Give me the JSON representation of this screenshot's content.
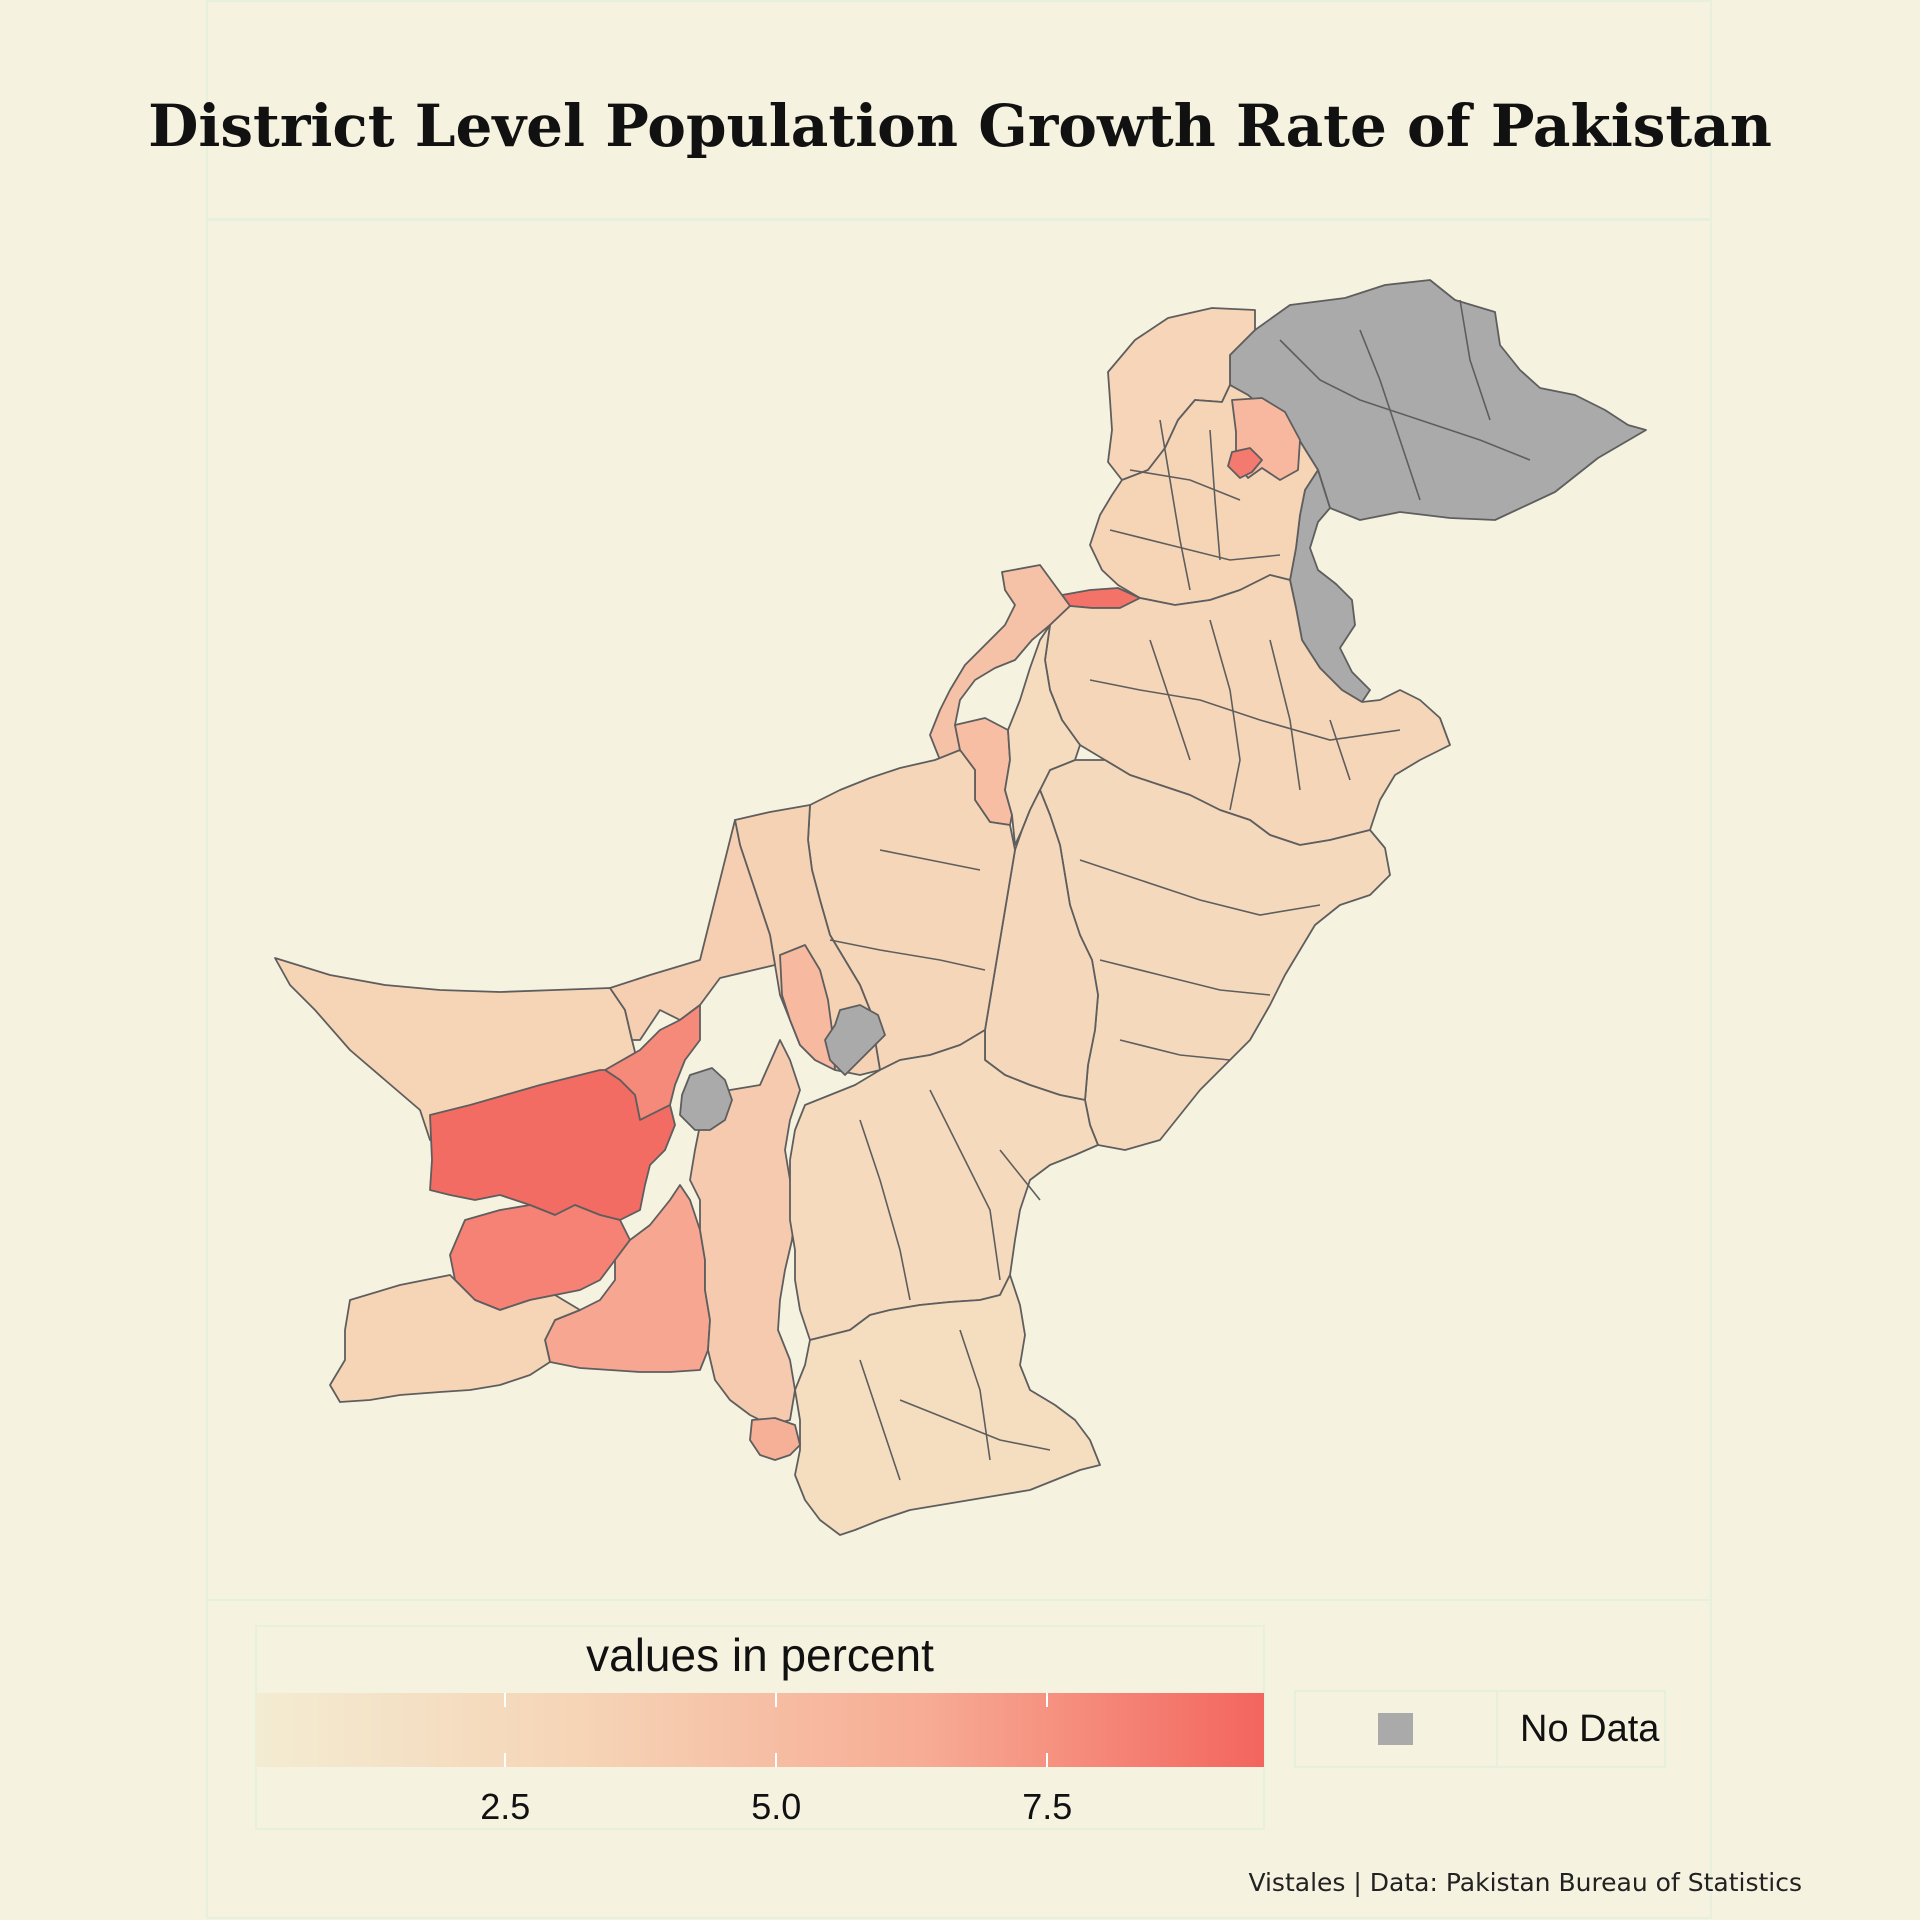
{
  "title": "District Level Population Growth Rate of Pakistan",
  "caption": "Vistales | Data: Pakistan Bureau of Statistics",
  "legend": {
    "title": "values in percent",
    "ticks": [
      {
        "label": "2.5",
        "value": 2.5
      },
      {
        "label": "5.0",
        "value": 5.0
      },
      {
        "label": "7.5",
        "value": 7.5
      }
    ],
    "range": [
      0.2,
      9.5
    ],
    "colors": [
      "#f3ecd2",
      "#f6d3b5",
      "#f7ab94",
      "#f3655e"
    ],
    "no_data_label": "No Data",
    "no_data_color": "#aaaaaa"
  },
  "colors": {
    "background": "#f5f2e0",
    "border": "#5e5e5e",
    "panel_line": "#e7f0dc"
  },
  "regions": [
    {
      "name": "northern-areas",
      "value": null
    },
    {
      "name": "kashmir-strip",
      "value": null
    },
    {
      "name": "chitral",
      "value": 3.0
    },
    {
      "name": "upper-kp-hills",
      "value": 3.1
    },
    {
      "name": "north-highlight-district",
      "value": 5.4
    },
    {
      "name": "north-small-district",
      "value": 8.6
    },
    {
      "name": "khyber-agency-strip",
      "value": 8.9
    },
    {
      "name": "tribal-belt-west",
      "value": 4.6
    },
    {
      "name": "tribal-belt-south",
      "value": 4.9
    },
    {
      "name": "punjab-north",
      "value": 2.9
    },
    {
      "name": "punjab-central",
      "value": 2.6
    },
    {
      "name": "punjab-west",
      "value": 2.2
    },
    {
      "name": "punjab-south",
      "value": 2.7
    },
    {
      "name": "balochistan-northeast",
      "value": 2.9
    },
    {
      "name": "balochistan-north-center",
      "value": 3.4
    },
    {
      "name": "balochistan-orange-strip",
      "value": 5.3
    },
    {
      "name": "chagai",
      "value": 3.2
    },
    {
      "name": "nushki-region",
      "value": 3.6
    },
    {
      "name": "kharan-region",
      "value": 7.9
    },
    {
      "name": "washuk",
      "value": 9.2
    },
    {
      "name": "panjgur-region",
      "value": 8.2
    },
    {
      "name": "awaran-region",
      "value": 6.6
    },
    {
      "name": "kech-gwadar",
      "value": 3.1
    },
    {
      "name": "khuzdar-lasbela",
      "value": 4.0
    },
    {
      "name": "small-gray-west",
      "value": null
    },
    {
      "name": "small-gray-center",
      "value": null
    },
    {
      "name": "sindh-north",
      "value": 2.4
    },
    {
      "name": "sindh-south",
      "value": 2.1
    },
    {
      "name": "karachi-region",
      "value": 6.0
    }
  ]
}
